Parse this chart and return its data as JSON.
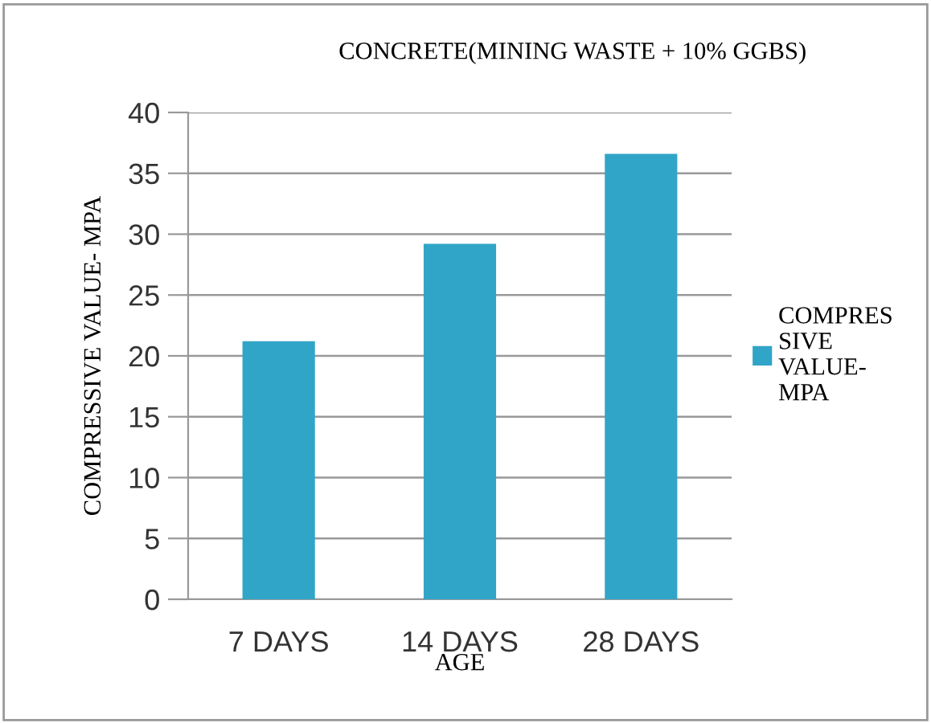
{
  "chart_data": {
    "type": "bar",
    "title": "CONCRETE(MINING WASTE + 10% GGBS)",
    "xlabel": "AGE",
    "ylabel": "COMPRESSIVE VALUE- MPA",
    "categories": [
      "7 DAYS",
      "14 DAYS",
      "28 DAYS"
    ],
    "series": [
      {
        "name": "COMPRES\nSIVE\nVALUE-\nMPA",
        "color": "#31a5c8",
        "values": [
          21.2,
          29.2,
          36.6
        ]
      }
    ],
    "ylim": [
      0,
      40
    ],
    "yticks": [
      0,
      5,
      10,
      15,
      20,
      25,
      30,
      35,
      40
    ],
    "grid": "y",
    "legend": "right"
  }
}
